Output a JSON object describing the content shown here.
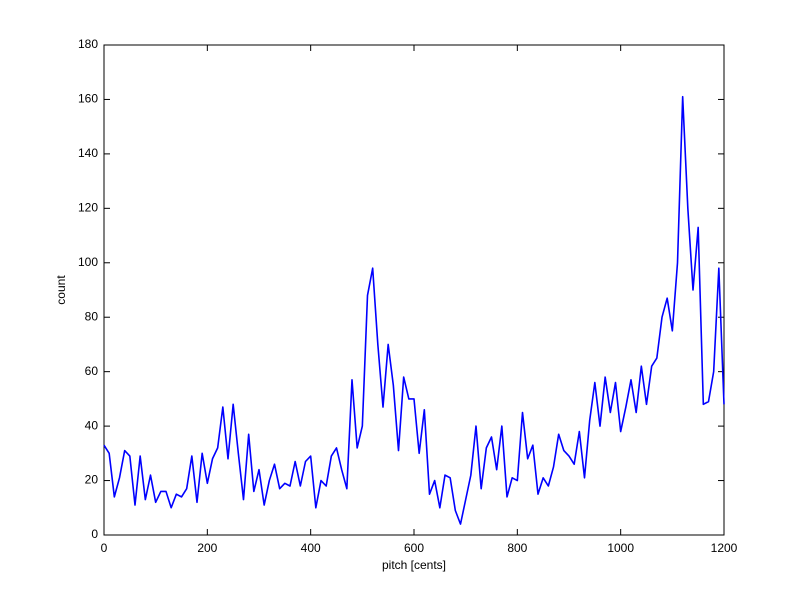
{
  "chart_data": {
    "type": "line",
    "xlabel": "pitch [cents]",
    "ylabel": "count",
    "x": [
      0,
      10,
      20,
      30,
      40,
      50,
      60,
      70,
      80,
      90,
      100,
      110,
      120,
      130,
      140,
      150,
      160,
      170,
      180,
      190,
      200,
      210,
      220,
      230,
      240,
      250,
      260,
      270,
      280,
      290,
      300,
      310,
      320,
      330,
      340,
      350,
      360,
      370,
      380,
      390,
      400,
      410,
      420,
      430,
      440,
      450,
      460,
      470,
      480,
      490,
      500,
      510,
      520,
      530,
      540,
      550,
      560,
      570,
      580,
      590,
      600,
      610,
      620,
      630,
      640,
      650,
      660,
      670,
      680,
      690,
      700,
      710,
      720,
      730,
      740,
      750,
      760,
      770,
      780,
      790,
      800,
      810,
      820,
      830,
      840,
      850,
      860,
      870,
      880,
      890,
      900,
      910,
      920,
      930,
      940,
      950,
      960,
      970,
      980,
      990,
      1000,
      1010,
      1020,
      1030,
      1040,
      1050,
      1060,
      1070,
      1080,
      1090,
      1100,
      1110,
      1120,
      1130,
      1140,
      1150,
      1160,
      1170,
      1180,
      1190,
      1200
    ],
    "series": [
      {
        "color": "#0000ff",
        "values": [
          33,
          30,
          14,
          21,
          31,
          29,
          11,
          29,
          13,
          22,
          12,
          16,
          16,
          10,
          15,
          14,
          17,
          29,
          12,
          30,
          19,
          28,
          32,
          47,
          28,
          48,
          30,
          13,
          37,
          16,
          24,
          11,
          20,
          26,
          17,
          19,
          18,
          27,
          18,
          27,
          29,
          10,
          20,
          18,
          29,
          32,
          24,
          17,
          57,
          32,
          40,
          88,
          98,
          70,
          47,
          70,
          55,
          31,
          58,
          50,
          50,
          30,
          46,
          15,
          20,
          10,
          22,
          21,
          9,
          4,
          13,
          22,
          40,
          17,
          32,
          36,
          24,
          40,
          14,
          21,
          20,
          45,
          28,
          33,
          15,
          21,
          18,
          25,
          37,
          31,
          29,
          26,
          38,
          21,
          42,
          56,
          40,
          58,
          45,
          56,
          38,
          47,
          57,
          45,
          62,
          48,
          62,
          65,
          80,
          87,
          75,
          100,
          161,
          120,
          90,
          113,
          48,
          49,
          60,
          98,
          48
        ]
      }
    ],
    "xlim": [
      0,
      1200
    ],
    "xticks": [
      0,
      200,
      400,
      600,
      800,
      1000,
      1200
    ],
    "ylim": [
      0,
      180
    ],
    "yticks": [
      0,
      20,
      40,
      60,
      80,
      100,
      120,
      140,
      160,
      180
    ]
  }
}
